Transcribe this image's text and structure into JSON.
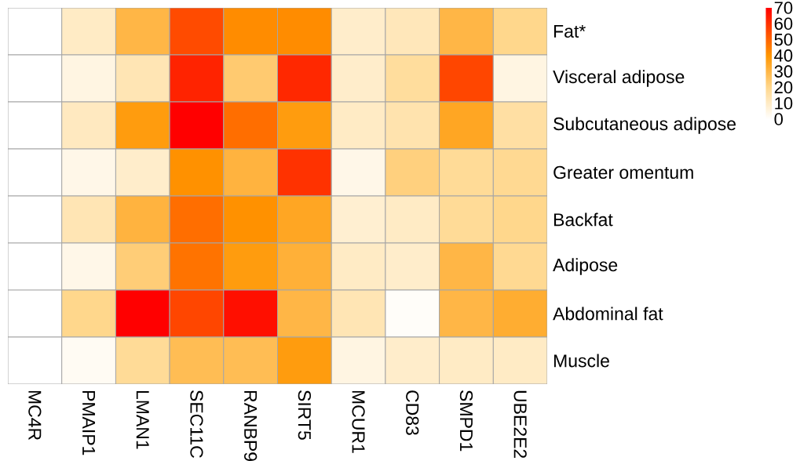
{
  "chart_data": {
    "type": "heatmap",
    "categories": [
      "MC4R",
      "PMAIP1",
      "LMAN1",
      "SEC11C",
      "RANBP9",
      "SIRT5",
      "MCUR1",
      "CD83",
      "SMPD1",
      "UBE2E2"
    ],
    "y_categories": [
      "Fat*",
      "Visceral adipose",
      "Subcutaneous adipose",
      "Greater omentum",
      "Backfat",
      "Adipose",
      "Abdominal fat",
      "Muscle"
    ],
    "cells": [
      [
        0,
        10,
        30,
        55,
        42,
        42,
        9,
        12,
        30,
        20
      ],
      [
        0,
        5,
        13,
        63,
        24,
        62,
        9,
        17,
        56,
        5
      ],
      [
        0,
        11,
        38,
        70,
        48,
        38,
        10,
        14,
        35,
        16
      ],
      [
        0,
        4,
        9,
        41,
        31,
        60,
        4,
        22,
        18,
        19
      ],
      [
        0,
        13,
        31,
        48,
        41,
        35,
        8,
        10,
        18,
        20
      ],
      [
        0,
        4,
        23,
        47,
        38,
        32,
        10,
        9,
        30,
        19
      ],
      [
        0,
        20,
        70,
        56,
        67,
        30,
        13,
        1,
        30,
        33
      ],
      [
        0,
        2,
        18,
        28,
        28,
        38,
        5,
        9,
        10,
        10
      ]
    ],
    "clim": [
      0,
      70
    ],
    "cticks": [
      0,
      10,
      20,
      30,
      40,
      50,
      60,
      70
    ]
  }
}
